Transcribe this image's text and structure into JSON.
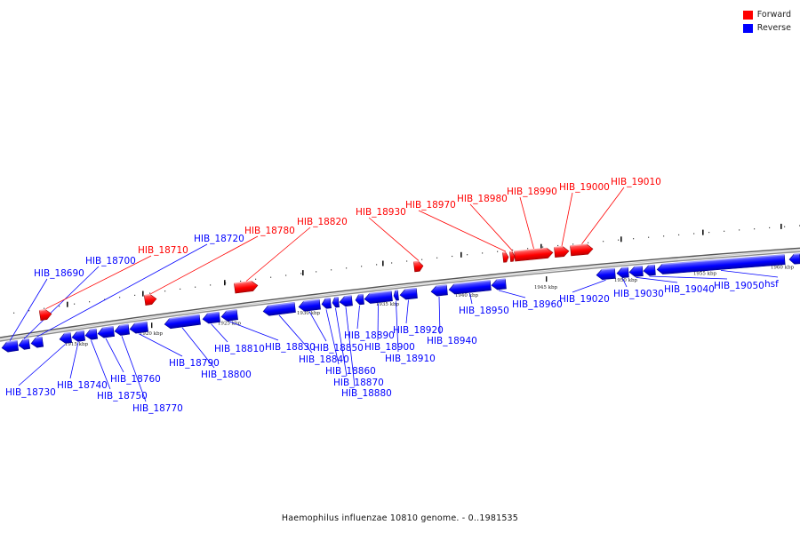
{
  "colors": {
    "forward": "#ff0000",
    "reverse": "#0000ff",
    "backbone": "#777777",
    "leader": "#000000"
  },
  "legend": [
    {
      "label": "Forward",
      "color": "#ff0000"
    },
    {
      "label": "Reverse",
      "color": "#0000ff"
    }
  ],
  "caption": "Haemophilus influenzae 10810 genome. - 0..1981535",
  "scale": {
    "unit": "kbp",
    "labels": [
      "1915 kbp",
      "1920 kbp",
      "1925 kbp",
      "1930 kbp",
      "1935 kbp",
      "1940 kbp",
      "1945 kbp",
      "1950 kbp",
      "1955 kbp",
      "1960 kbp"
    ]
  },
  "genes": [
    {
      "id": "HIB_18690",
      "strand": "reverse"
    },
    {
      "id": "HIB_18700",
      "strand": "reverse"
    },
    {
      "id": "HIB_18710",
      "strand": "forward"
    },
    {
      "id": "HIB_18720",
      "strand": "reverse"
    },
    {
      "id": "HIB_18730",
      "strand": "reverse"
    },
    {
      "id": "HIB_18740",
      "strand": "reverse"
    },
    {
      "id": "HIB_18750",
      "strand": "reverse"
    },
    {
      "id": "HIB_18760",
      "strand": "reverse"
    },
    {
      "id": "HIB_18770",
      "strand": "reverse"
    },
    {
      "id": "HIB_18780",
      "strand": "forward"
    },
    {
      "id": "HIB_18790",
      "strand": "reverse"
    },
    {
      "id": "HIB_18800",
      "strand": "reverse"
    },
    {
      "id": "HIB_18810",
      "strand": "reverse"
    },
    {
      "id": "HIB_18820",
      "strand": "forward"
    },
    {
      "id": "HIB_18830",
      "strand": "reverse"
    },
    {
      "id": "HIB_18840",
      "strand": "reverse"
    },
    {
      "id": "HIB_18850",
      "strand": "reverse"
    },
    {
      "id": "HIB_18860",
      "strand": "reverse"
    },
    {
      "id": "HIB_18870",
      "strand": "reverse"
    },
    {
      "id": "HIB_18880",
      "strand": "reverse"
    },
    {
      "id": "HIB_18890",
      "strand": "reverse"
    },
    {
      "id": "HIB_18900",
      "strand": "reverse"
    },
    {
      "id": "HIB_18910",
      "strand": "reverse"
    },
    {
      "id": "HIB_18920",
      "strand": "reverse"
    },
    {
      "id": "HIB_18930",
      "strand": "forward"
    },
    {
      "id": "HIB_18940",
      "strand": "reverse"
    },
    {
      "id": "HIB_18950",
      "strand": "reverse"
    },
    {
      "id": "HIB_18960",
      "strand": "reverse"
    },
    {
      "id": "HIB_18970",
      "strand": "forward"
    },
    {
      "id": "HIB_18980",
      "strand": "forward"
    },
    {
      "id": "HIB_18990",
      "strand": "forward"
    },
    {
      "id": "HIB_19000",
      "strand": "forward"
    },
    {
      "id": "HIB_19010",
      "strand": "forward"
    },
    {
      "id": "HIB_19020",
      "strand": "reverse"
    },
    {
      "id": "HIB_19030",
      "strand": "reverse"
    },
    {
      "id": "HIB_19040",
      "strand": "reverse"
    },
    {
      "id": "HIB_19050",
      "strand": "reverse"
    },
    {
      "id": "hsf",
      "strand": "reverse"
    }
  ]
}
